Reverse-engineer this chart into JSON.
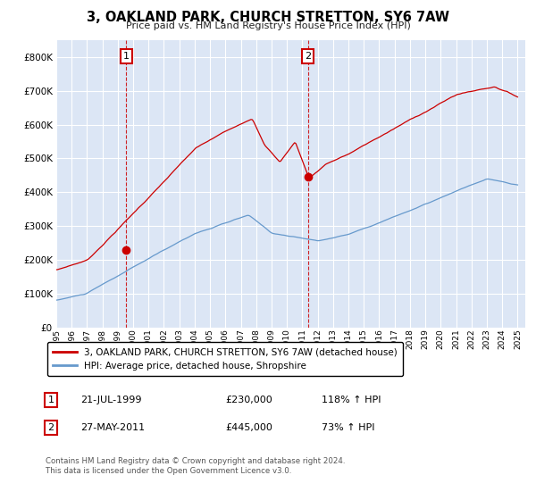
{
  "title": "3, OAKLAND PARK, CHURCH STRETTON, SY6 7AW",
  "subtitle": "Price paid vs. HM Land Registry's House Price Index (HPI)",
  "legend_line1": "3, OAKLAND PARK, CHURCH STRETTON, SY6 7AW (detached house)",
  "legend_line2": "HPI: Average price, detached house, Shropshire",
  "annotation1_date": "21-JUL-1999",
  "annotation1_price": 230000,
  "annotation1_hpi": "118% ↑ HPI",
  "annotation2_date": "27-MAY-2011",
  "annotation2_price": 445000,
  "annotation2_hpi": "73% ↑ HPI",
  "footnote": "Contains HM Land Registry data © Crown copyright and database right 2024.\nThis data is licensed under the Open Government Licence v3.0.",
  "hpi_color": "#6699cc",
  "price_color": "#cc0000",
  "annotation_box_color": "#cc0000",
  "bg_color": "#dce6f5",
  "grid_color": "#ffffff",
  "ylim": [
    0,
    850000
  ],
  "yticks": [
    0,
    100000,
    200000,
    300000,
    400000,
    500000,
    600000,
    700000,
    800000
  ],
  "sale1_year": 1999.55,
  "sale1_price": 230000,
  "sale2_year": 2011.37,
  "sale2_price": 445000
}
